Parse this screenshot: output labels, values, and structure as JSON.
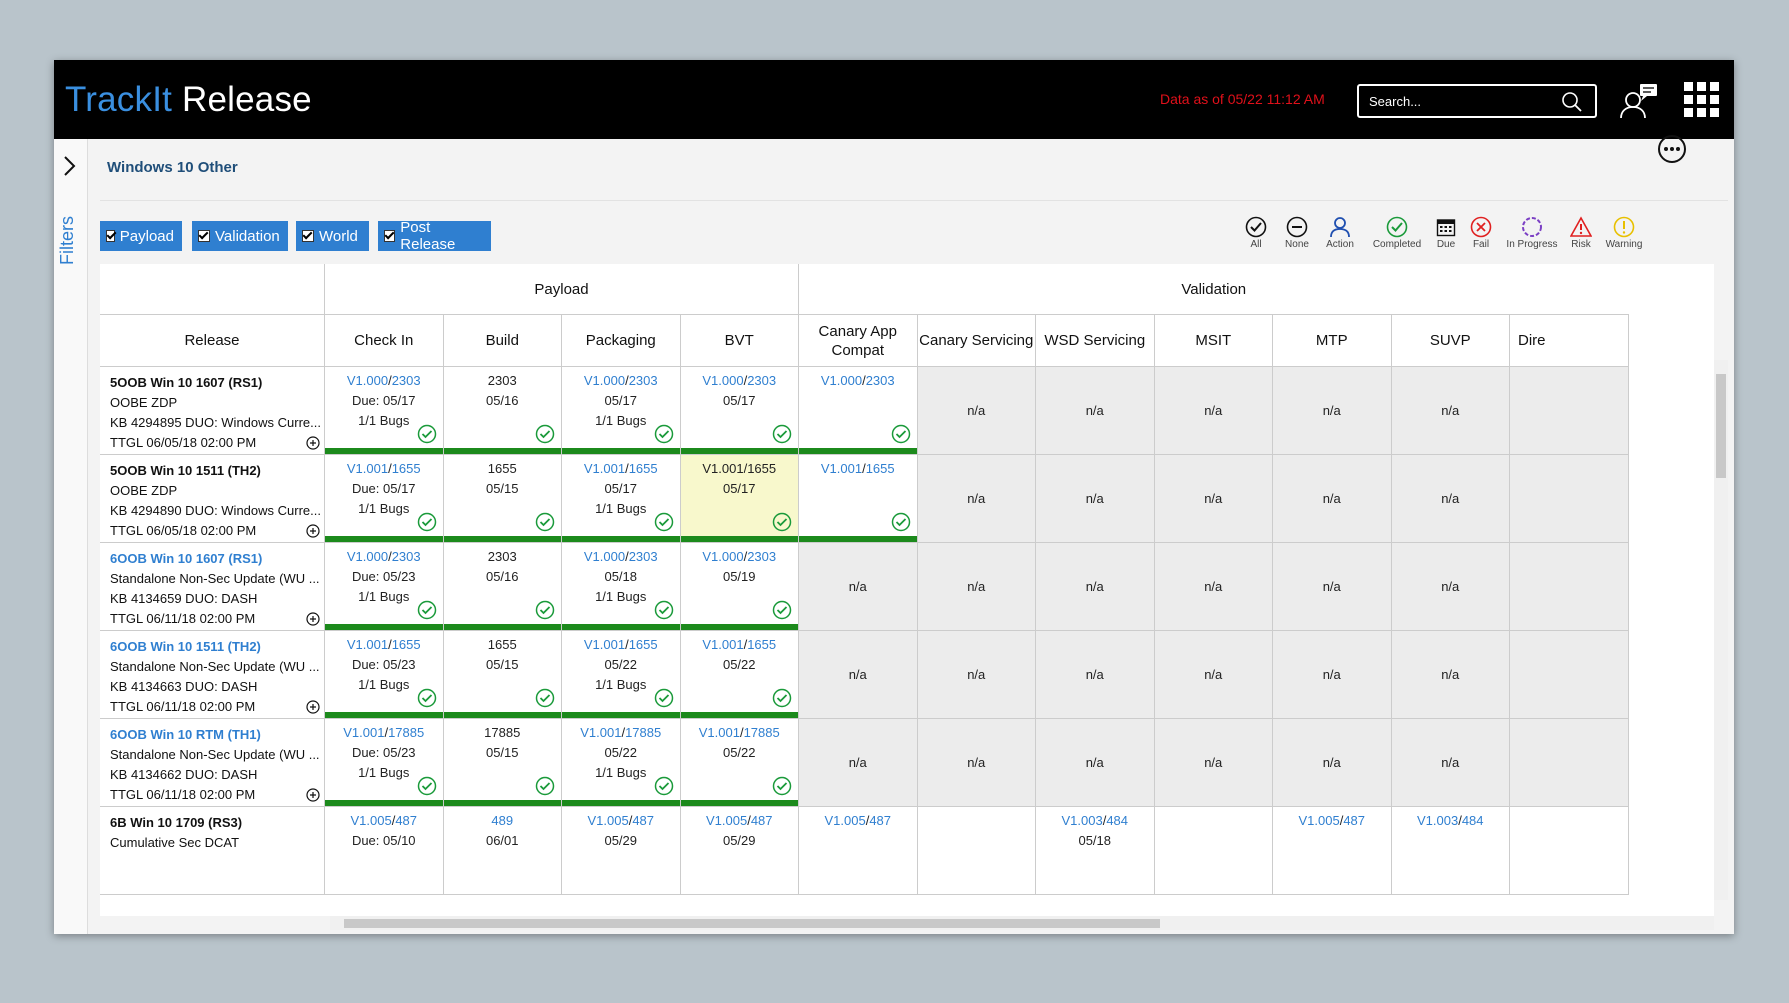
{
  "app": {
    "brand_part1": "TrackIt",
    "brand_part2": "Release",
    "data_as_of": "Data as of 05/22 11:12 AM",
    "search_placeholder": "Search..."
  },
  "sidebar": {
    "label": "Filters"
  },
  "page": {
    "title": "Windows 10 Other"
  },
  "filters": [
    {
      "label": "Payload",
      "checked": true
    },
    {
      "label": "Validation",
      "checked": true
    },
    {
      "label": "World",
      "checked": true
    },
    {
      "label": "Post Release",
      "checked": true
    }
  ],
  "legend": [
    {
      "label": "All",
      "icon": "all-check-icon"
    },
    {
      "label": "None",
      "icon": "none-minus-icon"
    },
    {
      "label": "Action",
      "icon": "person-icon"
    },
    {
      "label": "Completed",
      "icon": "check-circle-icon"
    },
    {
      "label": "Due",
      "icon": "calendar-icon"
    },
    {
      "label": "Fail",
      "icon": "fail-x-icon"
    },
    {
      "label": "In Progress",
      "icon": "progress-icon"
    },
    {
      "label": "Risk",
      "icon": "risk-triangle-icon"
    },
    {
      "label": "Warning",
      "icon": "warning-icon"
    }
  ],
  "colors": {
    "accent": "#2f7fd0",
    "complete_bar": "#1c8a1c",
    "highlight": "#f8f8cc",
    "na_bg": "#ececec",
    "alert": "#e0101a"
  },
  "table": {
    "groups": [
      "Payload",
      "Validation"
    ],
    "columns": [
      "Release",
      "Check In",
      "Build",
      "Packaging",
      "BVT",
      "Canary App Compat",
      "Canary Servicing",
      "WSD Servicing",
      "MSIT",
      "MTP",
      "SUVP",
      "Dire"
    ],
    "na": "n/a",
    "rows": [
      {
        "release": [
          "5OOB Win 10 1607 (RS1)",
          "OOBE ZDP",
          "KB 4294895 DUO: Windows Curre...",
          "TTGL 06/05/18 02:00 PM"
        ],
        "cells": [
          [
            [
              "V1.000",
              "2303"
            ],
            "Due: 05/17",
            "1/1 Bugs"
          ],
          [
            "2303",
            "05/16"
          ],
          [
            [
              "V1.000",
              "2303"
            ],
            "05/17",
            "1/1 Bugs"
          ],
          [
            [
              "V1.000",
              "2303"
            ],
            "05/17"
          ],
          [
            [
              "V1.000",
              "2303"
            ]
          ]
        ]
      },
      {
        "release": [
          "5OOB Win 10 1511 (TH2)",
          "OOBE ZDP",
          "KB 4294890 DUO: Windows Curre...",
          "TTGL 06/05/18 02:00 PM"
        ],
        "cells": [
          [
            [
              "V1.001",
              "1655"
            ],
            "Due: 05/17",
            "1/1 Bugs"
          ],
          [
            "1655",
            "05/15"
          ],
          [
            [
              "V1.001",
              "1655"
            ],
            "05/17",
            "1/1 Bugs"
          ],
          [
            "V1.001/1655",
            "05/17"
          ],
          [
            [
              "V1.001",
              "1655"
            ]
          ]
        ]
      },
      {
        "release": [
          "6OOB Win 10 1607 (RS1)",
          "Standalone Non-Sec Update (WU ...",
          "KB 4134659 DUO: DASH",
          "TTGL 06/11/18 02:00 PM"
        ],
        "cells": [
          [
            [
              "V1.000",
              "2303"
            ],
            "Due: 05/23",
            "1/1 Bugs"
          ],
          [
            "2303",
            "05/16"
          ],
          [
            [
              "V1.000",
              "2303"
            ],
            "05/18",
            "1/1 Bugs"
          ],
          [
            [
              "V1.000",
              "2303"
            ],
            "05/19"
          ]
        ]
      },
      {
        "release": [
          "6OOB Win 10 1511 (TH2)",
          "Standalone Non-Sec Update (WU ...",
          "KB 4134663 DUO: DASH",
          "TTGL 06/11/18 02:00 PM"
        ],
        "cells": [
          [
            [
              "V1.001",
              "1655"
            ],
            "Due: 05/23",
            "1/1 Bugs"
          ],
          [
            "1655",
            "05/15"
          ],
          [
            [
              "V1.001",
              "1655"
            ],
            "05/22",
            "1/1 Bugs"
          ],
          [
            [
              "V1.001",
              "1655"
            ],
            "05/22"
          ]
        ]
      },
      {
        "release": [
          "6OOB Win 10 RTM (TH1)",
          "Standalone Non-Sec Update (WU ...",
          "KB 4134662 DUO: DASH",
          "TTGL 06/11/18 02:00 PM"
        ],
        "cells": [
          [
            [
              "V1.001",
              "17885"
            ],
            "Due: 05/23",
            "1/1 Bugs"
          ],
          [
            "17885",
            "05/15"
          ],
          [
            [
              "V1.001",
              "17885"
            ],
            "05/22",
            "1/1 Bugs"
          ],
          [
            [
              "V1.001",
              "17885"
            ],
            "05/22"
          ]
        ]
      },
      {
        "release": [
          "6B Win 10 1709 (RS3)",
          "Cumulative Sec DCAT"
        ],
        "cells": [
          [
            [
              "V1.005",
              "487"
            ],
            "Due: 05/10"
          ],
          [
            "489",
            "06/01"
          ],
          [
            [
              "V1.005",
              "487"
            ],
            "05/29"
          ],
          [
            [
              "V1.005",
              "487"
            ],
            "05/29"
          ],
          [
            [
              "V1.005",
              "487"
            ]
          ],
          [],
          [
            [
              "V1.003",
              "484"
            ],
            "05/18"
          ],
          [],
          [
            [
              "V1.005",
              "487"
            ]
          ],
          [
            [
              "V1.003",
              "484"
            ]
          ]
        ]
      }
    ]
  }
}
